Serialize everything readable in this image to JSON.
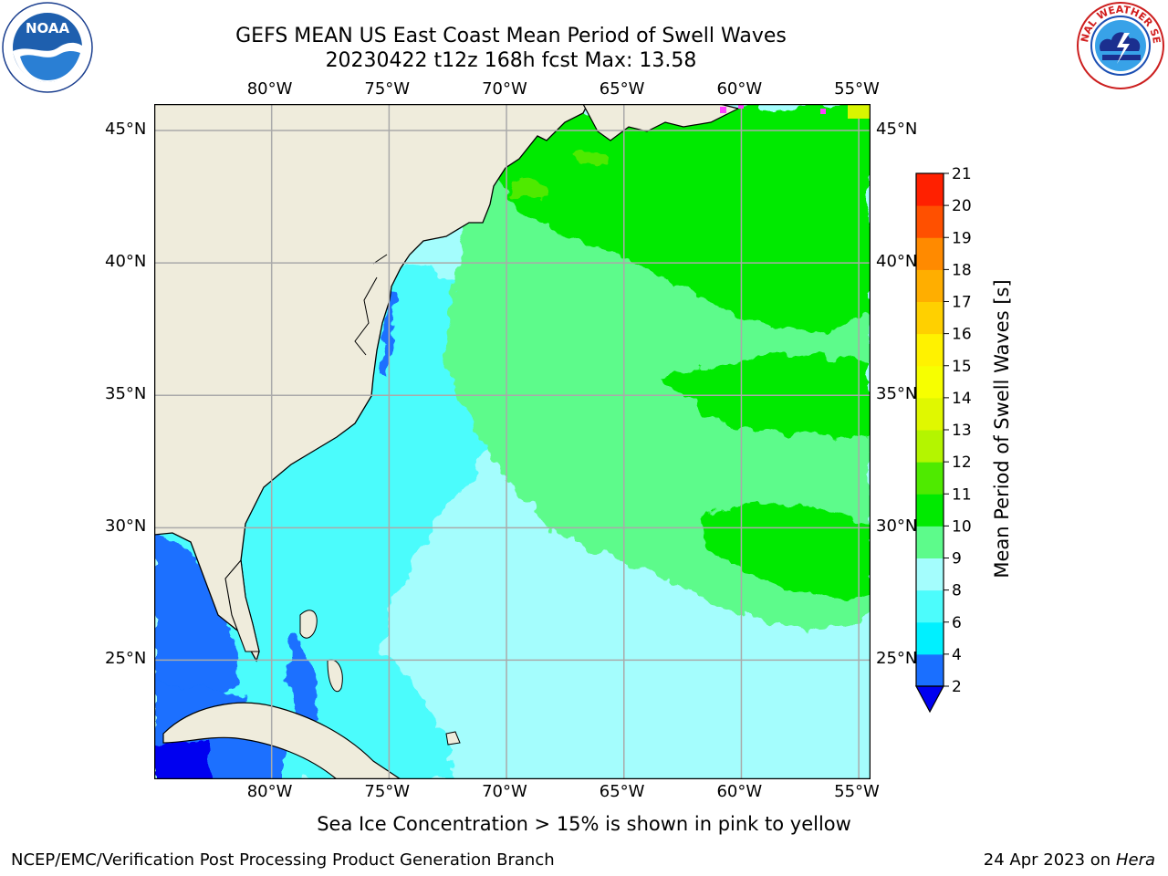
{
  "title": {
    "line1": "GEFS MEAN US East Coast Mean Period of Swell Waves",
    "line2": "20230422 t12z 168h fcst   Max: 13.58"
  },
  "map": {
    "lon_range": [
      -85,
      -54.5
    ],
    "lat_range": [
      20.5,
      46
    ],
    "lon_ticks": [
      -80,
      -75,
      -70,
      -65,
      -60,
      -55
    ],
    "lat_ticks": [
      25,
      30,
      35,
      40,
      45
    ],
    "lon_labels": [
      "80°W",
      "75°W",
      "70°W",
      "65°W",
      "60°W",
      "55°W"
    ],
    "lat_labels": [
      "25°N",
      "30°N",
      "35°N",
      "40°N",
      "45°N"
    ],
    "grid": true,
    "land_color": "#efecdc"
  },
  "colorbar": {
    "label": "Mean Period of Swell Waves [s]",
    "levels": [
      2,
      4,
      6,
      8,
      9,
      10,
      11,
      12,
      13,
      14,
      15,
      16,
      17,
      18,
      19,
      20,
      21
    ],
    "colors": [
      "#1a6fff",
      "#00f0ff",
      "#4cfcfc",
      "#a4fdfd",
      "#5dfb8b",
      "#00ea00",
      "#4fea00",
      "#b4f500",
      "#e0f800",
      "#f7ff00",
      "#fff200",
      "#ffd000",
      "#ffae00",
      "#ff8a00",
      "#ff5000",
      "#ff2000"
    ],
    "under_color": "#0000f0"
  },
  "footnote": "Sea Ice Concentration > 15% is shown in pink to yellow",
  "credit_left": "NCEP/EMC/Verification Post Processing Product Generation Branch",
  "credit_date": "24 Apr 2023 on ",
  "credit_machine": "Hera",
  "logos": {
    "left": "NOAA",
    "right": "NATIONAL WEATHER SERVICE"
  }
}
